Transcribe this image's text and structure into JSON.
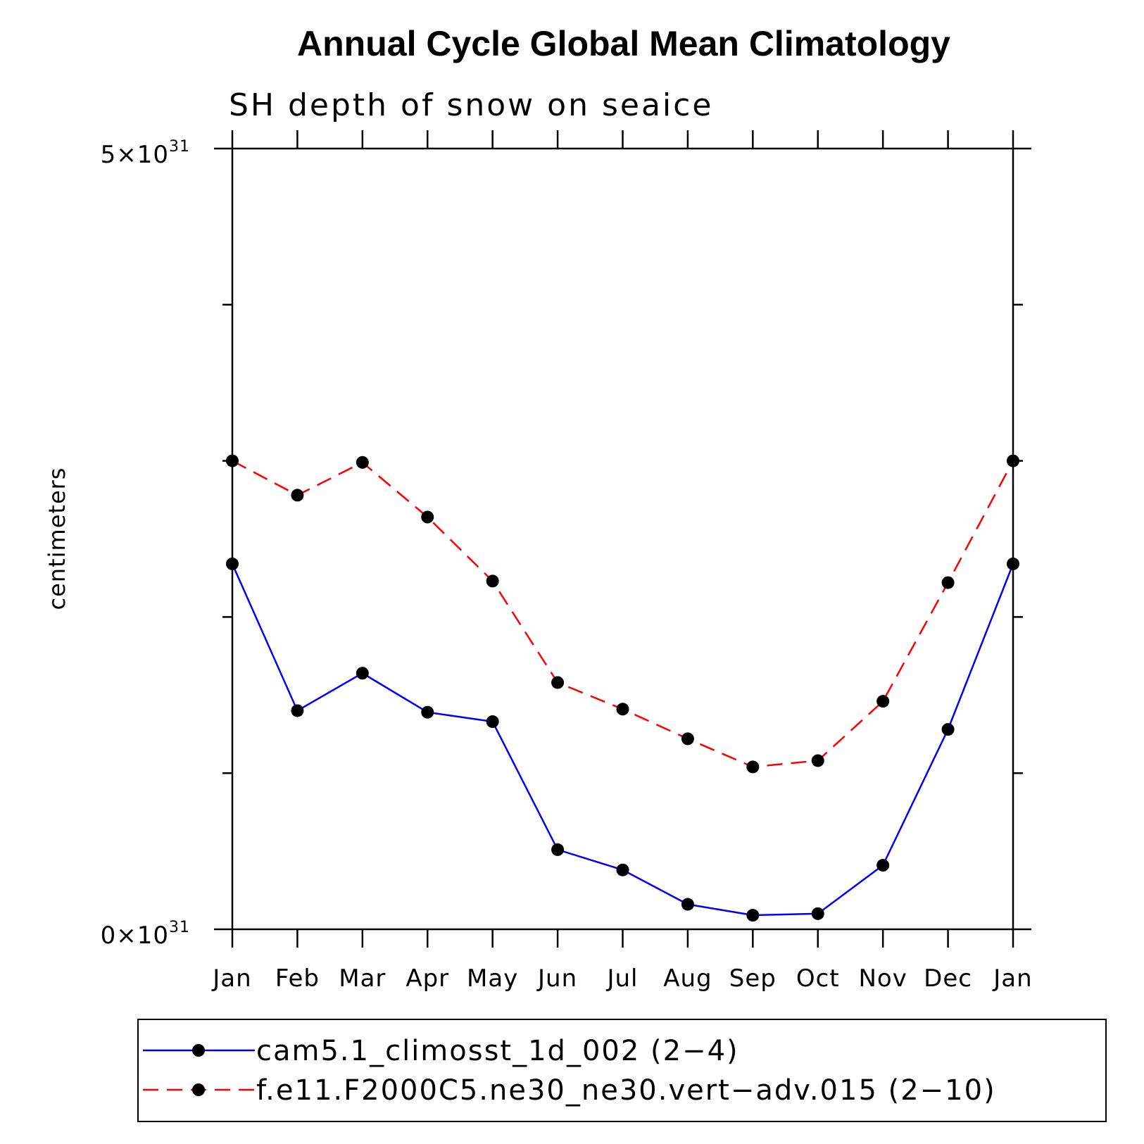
{
  "chart_data": {
    "type": "line",
    "title": "Annual Cycle Global Mean Climatology",
    "subtitle": "SH depth of snow on seaice",
    "ylabel": "centimeters",
    "ylim": [
      0,
      5e+31
    ],
    "y_ticks": [
      {
        "mantissa": "5",
        "base": "10",
        "exponent": "31"
      },
      {
        "mantissa": "0",
        "base": "10",
        "exponent": "31"
      }
    ],
    "categories": [
      "Jan",
      "Feb",
      "Mar",
      "Apr",
      "May",
      "Jun",
      "Jul",
      "Aug",
      "Sep",
      "Oct",
      "Nov",
      "Dec",
      "Jan"
    ],
    "series": [
      {
        "name": "cam5.1_climosst_1d_002 (2−4)",
        "color": "#0000ff",
        "dash": "solid",
        "values": [
          2.34e+31,
          1.4e+31,
          1.64e+31,
          1.39e+31,
          1.33e+31,
          5.1e+30,
          3.8e+30,
          1.6e+30,
          9e+29,
          1e+30,
          4.1e+30,
          1.28e+31,
          2.34e+31
        ]
      },
      {
        "name": "f.e11.F2000C5.ne30_ne30.vert−adv.015 (2−10)",
        "color": "#ff0000",
        "dash": "dashed",
        "values": [
          3e+31,
          2.78e+31,
          2.99e+31,
          2.64e+31,
          2.23e+31,
          1.58e+31,
          1.41e+31,
          1.22e+31,
          1.04e+31,
          1.08e+31,
          1.46e+31,
          2.22e+31,
          3e+31
        ]
      }
    ]
  }
}
